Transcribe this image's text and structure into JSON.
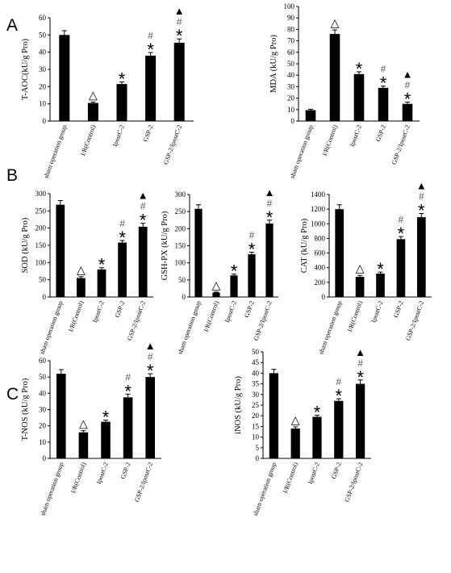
{
  "panel_letters": [
    "A",
    "B",
    "C"
  ],
  "chart_data": [
    {
      "type": "bar",
      "ylabel": "T-AOC(kU/g Pro)",
      "ylim": [
        0,
        60
      ],
      "yticks": [
        0,
        10,
        20,
        30,
        40,
        50,
        60
      ],
      "categories": [
        "sham operation group",
        "I/R(Control)",
        "IpostC-2",
        "GSP-2",
        "GSP-2/IpostC-2"
      ],
      "values": [
        50,
        10.5,
        21.5,
        38,
        45.5
      ],
      "errors": [
        2.5,
        0.6,
        1.2,
        1.8,
        2.2
      ],
      "marks": [
        [],
        [
          "△"
        ],
        [
          "*"
        ],
        [
          "*",
          "#"
        ],
        [
          "*",
          "#",
          "▲"
        ]
      ]
    },
    {
      "type": "bar",
      "ylabel": "MDA (kU/g Pro)",
      "ylim": [
        0,
        100
      ],
      "yticks": [
        0,
        10,
        20,
        30,
        40,
        50,
        60,
        70,
        80,
        90,
        100
      ],
      "categories": [
        "sham operation group",
        "I/R(Control)",
        "IpostC-2",
        "GSP-2",
        "GSP-2/IpostC-2"
      ],
      "values": [
        9.5,
        76,
        41,
        29,
        15
      ],
      "errors": [
        0.8,
        3.5,
        2,
        1.5,
        1.5
      ],
      "marks": [
        [],
        [
          "△"
        ],
        [
          "*"
        ],
        [
          "*",
          "#"
        ],
        [
          "*",
          "#",
          "▲"
        ]
      ]
    },
    {
      "type": "bar",
      "ylabel": "SOD (kU/g Pro)",
      "ylim": [
        0,
        300
      ],
      "yticks": [
        0,
        50,
        100,
        150,
        200,
        250,
        300
      ],
      "categories": [
        "sham operation group",
        "I/R(Control)",
        "IpostC-2",
        "GSP-2",
        "GSP-2/IpostC-2"
      ],
      "values": [
        268,
        55,
        80,
        158,
        204
      ],
      "errors": [
        12,
        4,
        5,
        6,
        10
      ],
      "marks": [
        [],
        [
          "△"
        ],
        [
          "*"
        ],
        [
          "*",
          "#"
        ],
        [
          "*",
          "#",
          "▲"
        ]
      ]
    },
    {
      "type": "bar",
      "ylabel": "GSH-PX (kU/g Pro)",
      "ylim": [
        0,
        300
      ],
      "yticks": [
        0,
        50,
        100,
        150,
        200,
        250,
        300
      ],
      "categories": [
        "sham operation group",
        "I/R(Control)",
        "IpostC-2",
        "GSP-2",
        "GSP-2/IpostC-2"
      ],
      "values": [
        258,
        13,
        63,
        125,
        215
      ],
      "errors": [
        12,
        1.5,
        4,
        6,
        10
      ],
      "marks": [
        [],
        [
          "△"
        ],
        [
          "*"
        ],
        [
          "*",
          "#"
        ],
        [
          "*",
          "#",
          "▲"
        ]
      ]
    },
    {
      "type": "bar",
      "ylabel": "CAT (kU/g Pro)",
      "ylim": [
        0,
        1400
      ],
      "yticks": [
        0,
        200,
        400,
        600,
        800,
        1000,
        1200,
        1400
      ],
      "categories": [
        "sham operation group",
        "I/R(Control)",
        "IpostC-2",
        "GSP-2",
        "GSP-2/IpostC-2"
      ],
      "values": [
        1200,
        275,
        320,
        790,
        1090
      ],
      "errors": [
        60,
        20,
        20,
        35,
        50
      ],
      "marks": [
        [],
        [
          "△"
        ],
        [
          "*"
        ],
        [
          "*",
          "#"
        ],
        [
          "*",
          "#",
          "▲"
        ]
      ]
    },
    {
      "type": "bar",
      "ylabel": "T-NOS (kU/g Pro)",
      "ylim": [
        0,
        60
      ],
      "yticks": [
        0,
        10,
        20,
        30,
        40,
        50,
        60
      ],
      "categories": [
        "sham operation group",
        "I/R(Control)",
        "IpostC-2",
        "GSP-2",
        "GSP-2/IpostC-2"
      ],
      "values": [
        52,
        16,
        22.5,
        37.5,
        50
      ],
      "errors": [
        2.5,
        1,
        1,
        2,
        2
      ],
      "marks": [
        [],
        [
          "△"
        ],
        [
          "*"
        ],
        [
          "*",
          "#"
        ],
        [
          "*",
          "#",
          "▲"
        ]
      ]
    },
    {
      "type": "bar",
      "ylabel": "iNOS (kU/g Pro)",
      "ylim": [
        0,
        50
      ],
      "yticks": [
        0,
        5,
        10,
        15,
        20,
        25,
        30,
        35,
        40,
        45,
        50
      ],
      "categories": [
        "sham operation group",
        "I/R(Control)",
        "IpostC-2",
        "GSP-2",
        "GSP-2/IpostC-2"
      ],
      "values": [
        40,
        14,
        19.5,
        27,
        35
      ],
      "errors": [
        1.8,
        0.8,
        0.8,
        1,
        1.8
      ],
      "marks": [
        [],
        [
          "△"
        ],
        [
          "*"
        ],
        [
          "*",
          "#"
        ],
        [
          "*",
          "#",
          "▲"
        ]
      ]
    }
  ]
}
